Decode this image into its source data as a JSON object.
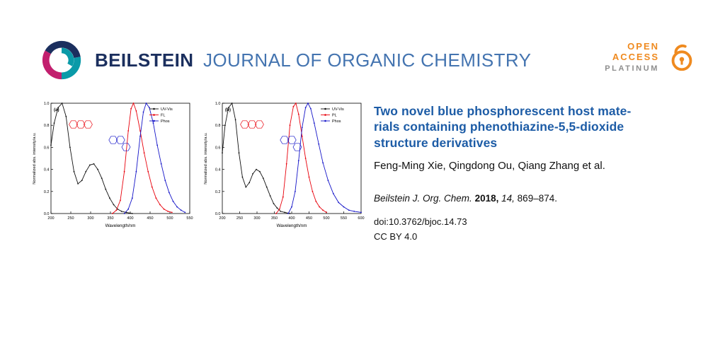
{
  "header": {
    "brand_bold": "BEILSTEIN",
    "brand_rest": "JOURNAL OF ORGANIC CHEMISTRY",
    "brand_color_bold": "#1b2f5e",
    "brand_color_rest": "#4474b0",
    "open_access": {
      "line1": "OPEN",
      "line2": "ACCESS",
      "line3": "PLATINUM",
      "accent_color": "#ef8a1f",
      "platinum_color": "#8e8e8e"
    }
  },
  "article": {
    "title": "Two novel blue phosphorescent host mate-\nrials containing phenothiazine-5,5-dioxide\nstructure derivatives",
    "title_color": "#1d5ca6",
    "authors": "Feng-Ming Xie, Qingdong Ou, Qiang Zhang et al.",
    "citation": {
      "journal": "Beilstein J. Org. Chem.",
      "year": "2018,",
      "volume": "14,",
      "pages": "869–874."
    },
    "doi": "doi:10.3762/bjoc.14.73",
    "license": "CC BY 4.0"
  },
  "chart_data": [
    {
      "type": "line",
      "panel_label": "(a)",
      "xlabel": "Wavelength/nm",
      "ylabel": "Normalized abs. intensity/a.u.",
      "xlim": [
        200,
        550
      ],
      "ylim": [
        0.0,
        1.0
      ],
      "xticks": [
        200,
        250,
        300,
        350,
        400,
        450,
        500,
        550
      ],
      "yticks": [
        0.0,
        0.2,
        0.4,
        0.6,
        0.8,
        1.0
      ],
      "legend_position": "top-right",
      "grid": false,
      "series": [
        {
          "name": "UV-Vis",
          "color": "#111111",
          "points": [
            [
              200,
              0.62
            ],
            [
              208,
              0.82
            ],
            [
              218,
              0.96
            ],
            [
              228,
              1.0
            ],
            [
              238,
              0.88
            ],
            [
              248,
              0.6
            ],
            [
              258,
              0.38
            ],
            [
              268,
              0.27
            ],
            [
              278,
              0.3
            ],
            [
              288,
              0.38
            ],
            [
              298,
              0.44
            ],
            [
              308,
              0.45
            ],
            [
              318,
              0.4
            ],
            [
              328,
              0.32
            ],
            [
              338,
              0.22
            ],
            [
              348,
              0.14
            ],
            [
              358,
              0.08
            ],
            [
              368,
              0.04
            ],
            [
              378,
              0.02
            ],
            [
              390,
              0.01
            ],
            [
              405,
              0.0
            ]
          ]
        },
        {
          "name": "FL",
          "color": "#e8000b",
          "points": [
            [
              355,
              0.0
            ],
            [
              365,
              0.03
            ],
            [
              375,
              0.12
            ],
            [
              385,
              0.38
            ],
            [
              395,
              0.75
            ],
            [
              402,
              0.95
            ],
            [
              408,
              1.0
            ],
            [
              415,
              0.93
            ],
            [
              425,
              0.75
            ],
            [
              435,
              0.55
            ],
            [
              445,
              0.38
            ],
            [
              455,
              0.24
            ],
            [
              465,
              0.14
            ],
            [
              475,
              0.08
            ],
            [
              485,
              0.04
            ],
            [
              495,
              0.02
            ],
            [
              505,
              0.01
            ]
          ]
        },
        {
          "name": "Phos",
          "color": "#1414c8",
          "points": [
            [
              385,
              0.0
            ],
            [
              395,
              0.04
            ],
            [
              405,
              0.14
            ],
            [
              415,
              0.38
            ],
            [
              425,
              0.7
            ],
            [
              433,
              0.92
            ],
            [
              440,
              1.0
            ],
            [
              448,
              0.96
            ],
            [
              458,
              0.82
            ],
            [
              468,
              0.62
            ],
            [
              478,
              0.45
            ],
            [
              488,
              0.3
            ],
            [
              498,
              0.19
            ],
            [
              508,
              0.11
            ],
            [
              518,
              0.06
            ],
            [
              528,
              0.03
            ],
            [
              538,
              0.01
            ]
          ]
        }
      ]
    },
    {
      "type": "line",
      "panel_label": "(b)",
      "xlabel": "Wavelength/nm",
      "ylabel": "Normalized abs. intensity/a.u.",
      "xlim": [
        200,
        600
      ],
      "ylim": [
        0.0,
        1.0
      ],
      "xticks": [
        200,
        250,
        300,
        350,
        400,
        450,
        500,
        550,
        600
      ],
      "yticks": [
        0.0,
        0.2,
        0.4,
        0.6,
        0.8,
        1.0
      ],
      "legend_position": "top-right",
      "grid": false,
      "series": [
        {
          "name": "UV-Vis",
          "color": "#111111",
          "points": [
            [
              200,
              0.55
            ],
            [
              208,
              0.8
            ],
            [
              218,
              0.96
            ],
            [
              228,
              1.0
            ],
            [
              238,
              0.85
            ],
            [
              248,
              0.55
            ],
            [
              258,
              0.33
            ],
            [
              268,
              0.24
            ],
            [
              278,
              0.28
            ],
            [
              288,
              0.36
            ],
            [
              298,
              0.4
            ],
            [
              308,
              0.38
            ],
            [
              318,
              0.32
            ],
            [
              328,
              0.24
            ],
            [
              338,
              0.16
            ],
            [
              348,
              0.09
            ],
            [
              358,
              0.05
            ],
            [
              368,
              0.02
            ],
            [
              380,
              0.01
            ],
            [
              395,
              0.0
            ]
          ]
        },
        {
          "name": "PL",
          "color": "#e8000b",
          "points": [
            [
              355,
              0.0
            ],
            [
              365,
              0.04
            ],
            [
              375,
              0.15
            ],
            [
              385,
              0.45
            ],
            [
              395,
              0.8
            ],
            [
              405,
              0.97
            ],
            [
              412,
              1.0
            ],
            [
              420,
              0.9
            ],
            [
              430,
              0.7
            ],
            [
              440,
              0.5
            ],
            [
              450,
              0.33
            ],
            [
              460,
              0.2
            ],
            [
              470,
              0.11
            ],
            [
              480,
              0.06
            ],
            [
              490,
              0.03
            ],
            [
              500,
              0.01
            ]
          ]
        },
        {
          "name": "Phos",
          "color": "#1414c8",
          "points": [
            [
              390,
              0.0
            ],
            [
              400,
              0.06
            ],
            [
              410,
              0.2
            ],
            [
              420,
              0.48
            ],
            [
              430,
              0.78
            ],
            [
              440,
              0.96
            ],
            [
              447,
              1.0
            ],
            [
              455,
              0.95
            ],
            [
              465,
              0.82
            ],
            [
              478,
              0.63
            ],
            [
              490,
              0.46
            ],
            [
              505,
              0.3
            ],
            [
              520,
              0.18
            ],
            [
              535,
              0.1
            ],
            [
              550,
              0.06
            ],
            [
              565,
              0.03
            ],
            [
              580,
              0.02
            ],
            [
              600,
              0.01
            ]
          ]
        }
      ]
    }
  ]
}
